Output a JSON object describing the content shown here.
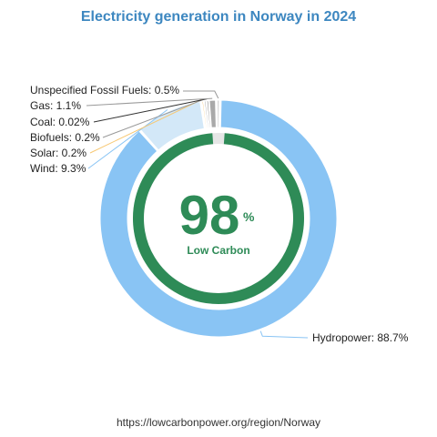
{
  "chart_data": {
    "type": "pie",
    "title": "Electricity generation in Norway in 2024",
    "categories": [
      "Hydropower",
      "Wind",
      "Solar",
      "Biofuels",
      "Coal",
      "Gas",
      "Unspecified Fossil Fuels"
    ],
    "values": [
      88.7,
      9.3,
      0.2,
      0.2,
      0.02,
      1.1,
      0.5
    ],
    "unit": "%",
    "data_labels": [
      "Hydropower: 88.7%",
      "Wind: 9.3%",
      "Solar: 0.2%",
      "Biofuels: 0.2%",
      "Coal: 0.02%",
      "Gas: 1.1%",
      "Unspecified Fossil Fuels: 0.5%"
    ],
    "colors": [
      "#89c4f4",
      "#d3e8f8",
      "#f7c873",
      "#8b8b8b",
      "#333333",
      "#a9a9a9",
      "#b8b8b8"
    ],
    "inner_ring": {
      "value": 98,
      "unit": "%",
      "label": "Low Carbon",
      "color": "#2e8b57"
    }
  },
  "footer": "https://lowcarbonpower.org/region/Norway"
}
